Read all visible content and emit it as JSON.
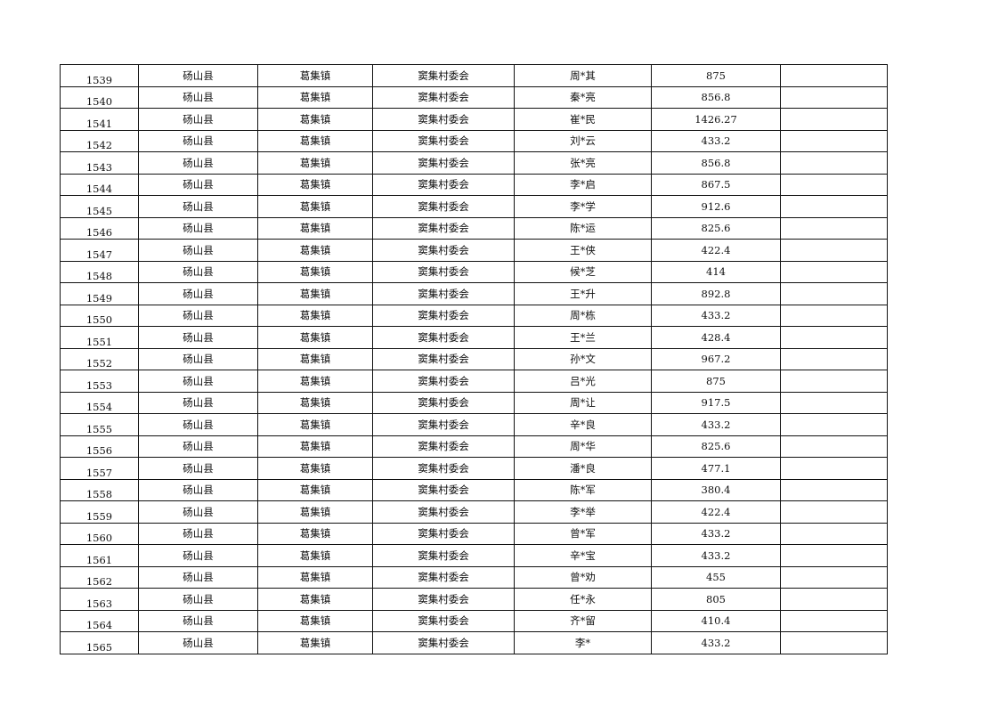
{
  "rows": [
    {
      "no": "1539",
      "county": "砀山县",
      "town": "葛集镇",
      "village": "窦集村委会",
      "name": "周*其",
      "amount": "875",
      "note": ""
    },
    {
      "no": "1540",
      "county": "砀山县",
      "town": "葛集镇",
      "village": "窦集村委会",
      "name": "秦*亮",
      "amount": "856.8",
      "note": ""
    },
    {
      "no": "1541",
      "county": "砀山县",
      "town": "葛集镇",
      "village": "窦集村委会",
      "name": "崔*民",
      "amount": "1426.27",
      "note": ""
    },
    {
      "no": "1542",
      "county": "砀山县",
      "town": "葛集镇",
      "village": "窦集村委会",
      "name": "刘*云",
      "amount": "433.2",
      "note": ""
    },
    {
      "no": "1543",
      "county": "砀山县",
      "town": "葛集镇",
      "village": "窦集村委会",
      "name": "张*亮",
      "amount": "856.8",
      "note": ""
    },
    {
      "no": "1544",
      "county": "砀山县",
      "town": "葛集镇",
      "village": "窦集村委会",
      "name": "李*启",
      "amount": "867.5",
      "note": ""
    },
    {
      "no": "1545",
      "county": "砀山县",
      "town": "葛集镇",
      "village": "窦集村委会",
      "name": "李*学",
      "amount": "912.6",
      "note": ""
    },
    {
      "no": "1546",
      "county": "砀山县",
      "town": "葛集镇",
      "village": "窦集村委会",
      "name": "陈*运",
      "amount": "825.6",
      "note": ""
    },
    {
      "no": "1547",
      "county": "砀山县",
      "town": "葛集镇",
      "village": "窦集村委会",
      "name": "王*侠",
      "amount": "422.4",
      "note": ""
    },
    {
      "no": "1548",
      "county": "砀山县",
      "town": "葛集镇",
      "village": "窦集村委会",
      "name": "候*芝",
      "amount": "414",
      "note": ""
    },
    {
      "no": "1549",
      "county": "砀山县",
      "town": "葛集镇",
      "village": "窦集村委会",
      "name": "王*升",
      "amount": "892.8",
      "note": ""
    },
    {
      "no": "1550",
      "county": "砀山县",
      "town": "葛集镇",
      "village": "窦集村委会",
      "name": "周*栋",
      "amount": "433.2",
      "note": ""
    },
    {
      "no": "1551",
      "county": "砀山县",
      "town": "葛集镇",
      "village": "窦集村委会",
      "name": "王*兰",
      "amount": "428.4",
      "note": ""
    },
    {
      "no": "1552",
      "county": "砀山县",
      "town": "葛集镇",
      "village": "窦集村委会",
      "name": "孙*文",
      "amount": "967.2",
      "note": ""
    },
    {
      "no": "1553",
      "county": "砀山县",
      "town": "葛集镇",
      "village": "窦集村委会",
      "name": "吕*光",
      "amount": "875",
      "note": ""
    },
    {
      "no": "1554",
      "county": "砀山县",
      "town": "葛集镇",
      "village": "窦集村委会",
      "name": "周*让",
      "amount": "917.5",
      "note": ""
    },
    {
      "no": "1555",
      "county": "砀山县",
      "town": "葛集镇",
      "village": "窦集村委会",
      "name": "辛*良",
      "amount": "433.2",
      "note": ""
    },
    {
      "no": "1556",
      "county": "砀山县",
      "town": "葛集镇",
      "village": "窦集村委会",
      "name": "周*华",
      "amount": "825.6",
      "note": ""
    },
    {
      "no": "1557",
      "county": "砀山县",
      "town": "葛集镇",
      "village": "窦集村委会",
      "name": "潘*良",
      "amount": "477.1",
      "note": ""
    },
    {
      "no": "1558",
      "county": "砀山县",
      "town": "葛集镇",
      "village": "窦集村委会",
      "name": "陈*军",
      "amount": "380.4",
      "note": ""
    },
    {
      "no": "1559",
      "county": "砀山县",
      "town": "葛集镇",
      "village": "窦集村委会",
      "name": "李*举",
      "amount": "422.4",
      "note": ""
    },
    {
      "no": "1560",
      "county": "砀山县",
      "town": "葛集镇",
      "village": "窦集村委会",
      "name": "曾*军",
      "amount": "433.2",
      "note": ""
    },
    {
      "no": "1561",
      "county": "砀山县",
      "town": "葛集镇",
      "village": "窦集村委会",
      "name": "辛*宝",
      "amount": "433.2",
      "note": ""
    },
    {
      "no": "1562",
      "county": "砀山县",
      "town": "葛集镇",
      "village": "窦集村委会",
      "name": "曾*劝",
      "amount": "455",
      "note": ""
    },
    {
      "no": "1563",
      "county": "砀山县",
      "town": "葛集镇",
      "village": "窦集村委会",
      "name": "任*永",
      "amount": "805",
      "note": ""
    },
    {
      "no": "1564",
      "county": "砀山县",
      "town": "葛集镇",
      "village": "窦集村委会",
      "name": "齐*留",
      "amount": "410.4",
      "note": ""
    },
    {
      "no": "1565",
      "county": "砀山县",
      "town": "葛集镇",
      "village": "窦集村委会",
      "name": "李*",
      "amount": "433.2",
      "note": ""
    }
  ]
}
